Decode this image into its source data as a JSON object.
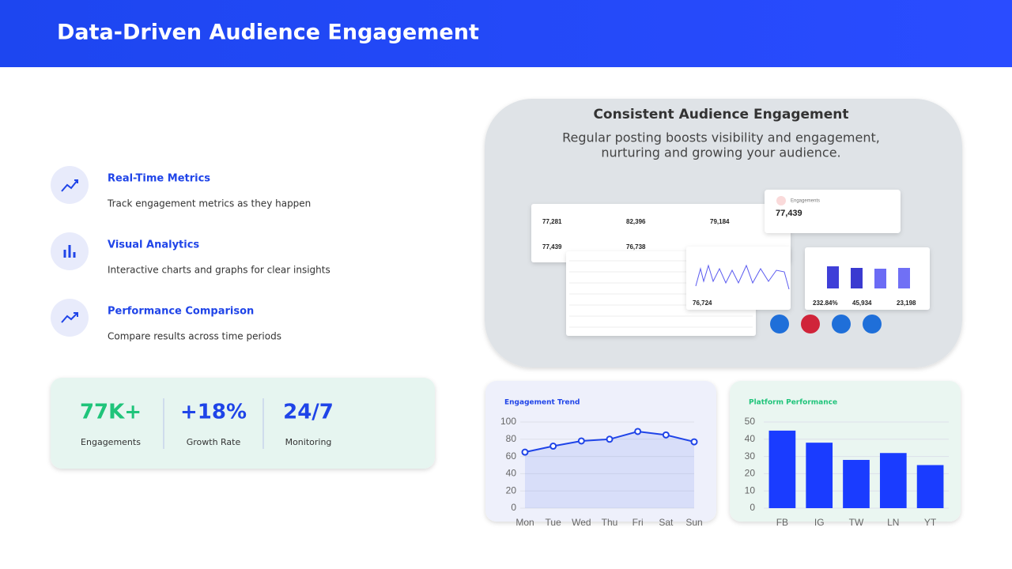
{
  "header": {
    "title": "Data-Driven Audience Engagement"
  },
  "features": [
    {
      "title": "Real-Time Metrics",
      "description": "Track engagement metrics as they happen"
    },
    {
      "title": "Visual Analytics",
      "description": "Interactive charts and graphs for clear insights"
    },
    {
      "title": "Performance Comparison",
      "description": "Compare results across time periods"
    }
  ],
  "stats": [
    {
      "value": "77K+",
      "label": "Engagements"
    },
    {
      "value": "+18%",
      "label": "Growth Rate"
    },
    {
      "value": "24/7",
      "label": "Monitoring"
    }
  ],
  "image": {
    "title": "Consistent Audience Engagement",
    "subtitle_lines": [
      "Regular posting boosts visibility and engagement,",
      "nurturing and growing your audience."
    ],
    "tiles": [
      "77,281",
      "82,396",
      "79,184",
      "77,439",
      "76,738"
    ],
    "popup_label": "Engagements",
    "popup_value": "77,439",
    "line_panel_value": "76,724",
    "bar_panel_values": [
      "232.84%",
      "45,934",
      "23,198"
    ]
  },
  "chart_data": [
    {
      "type": "line",
      "title": "Engagement Trend",
      "categories": [
        "Mon",
        "Tue",
        "Wed",
        "Thu",
        "Fri",
        "Sat",
        "Sun"
      ],
      "values": [
        65,
        72,
        78,
        80,
        89,
        85,
        77
      ],
      "color": "#1f44e8",
      "ylim": [
        0,
        100
      ],
      "yticks": [
        0,
        20,
        40,
        60,
        80,
        100
      ],
      "grid": true
    },
    {
      "type": "bar",
      "title": "Platform Performance",
      "categories": [
        "FB",
        "IG",
        "TW",
        "LN",
        "YT"
      ],
      "values": [
        45,
        38,
        28,
        32,
        25
      ],
      "color": "#1a3cff",
      "ylim": [
        0,
        50
      ],
      "yticks": [
        0,
        10,
        20,
        30,
        40,
        50
      ],
      "grid": true
    }
  ]
}
